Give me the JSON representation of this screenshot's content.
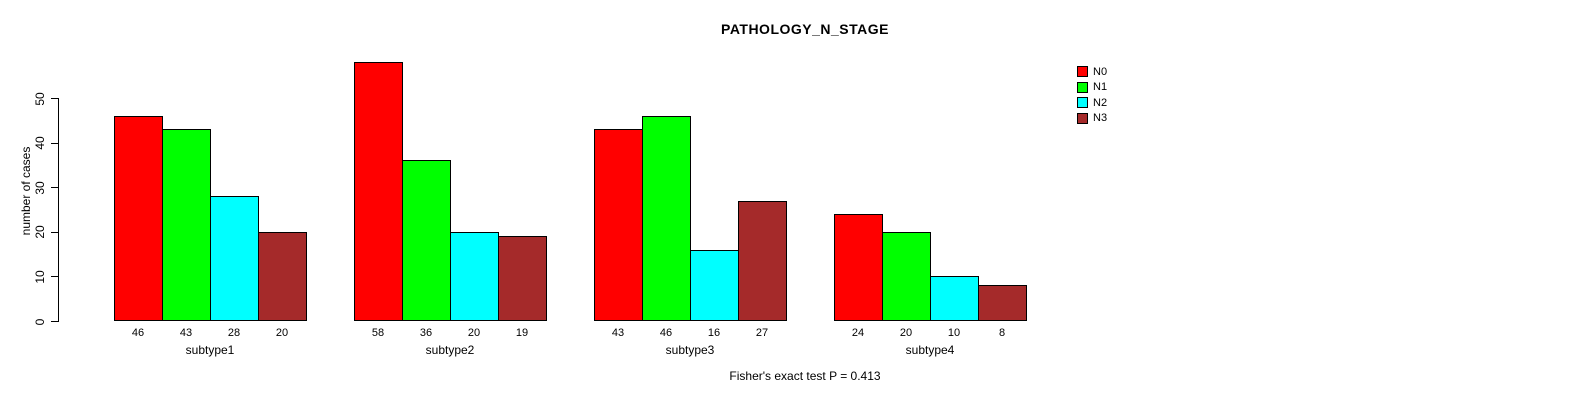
{
  "chart_data": {
    "type": "bar",
    "title": "PATHOLOGY_N_STAGE",
    "ylabel": "number of cases",
    "xlabel": "",
    "caption": "Fisher's exact test P = 0.413",
    "categories": [
      "subtype1",
      "subtype2",
      "subtype3",
      "subtype4"
    ],
    "series": [
      {
        "name": "N0",
        "color": "#ff0000",
        "values": [
          46,
          58,
          43,
          24
        ]
      },
      {
        "name": "N1",
        "color": "#00ff00",
        "values": [
          43,
          36,
          46,
          20
        ]
      },
      {
        "name": "N2",
        "color": "#00ffff",
        "values": [
          28,
          20,
          16,
          10
        ]
      },
      {
        "name": "N3",
        "color": "#a52a2a",
        "values": [
          20,
          19,
          27,
          8
        ]
      }
    ],
    "y_ticks": [
      0,
      10,
      20,
      30,
      40,
      50
    ],
    "ylim": [
      0,
      58
    ],
    "grid": false,
    "legend_position": "top-right",
    "value_labels_position": "below-bars"
  }
}
